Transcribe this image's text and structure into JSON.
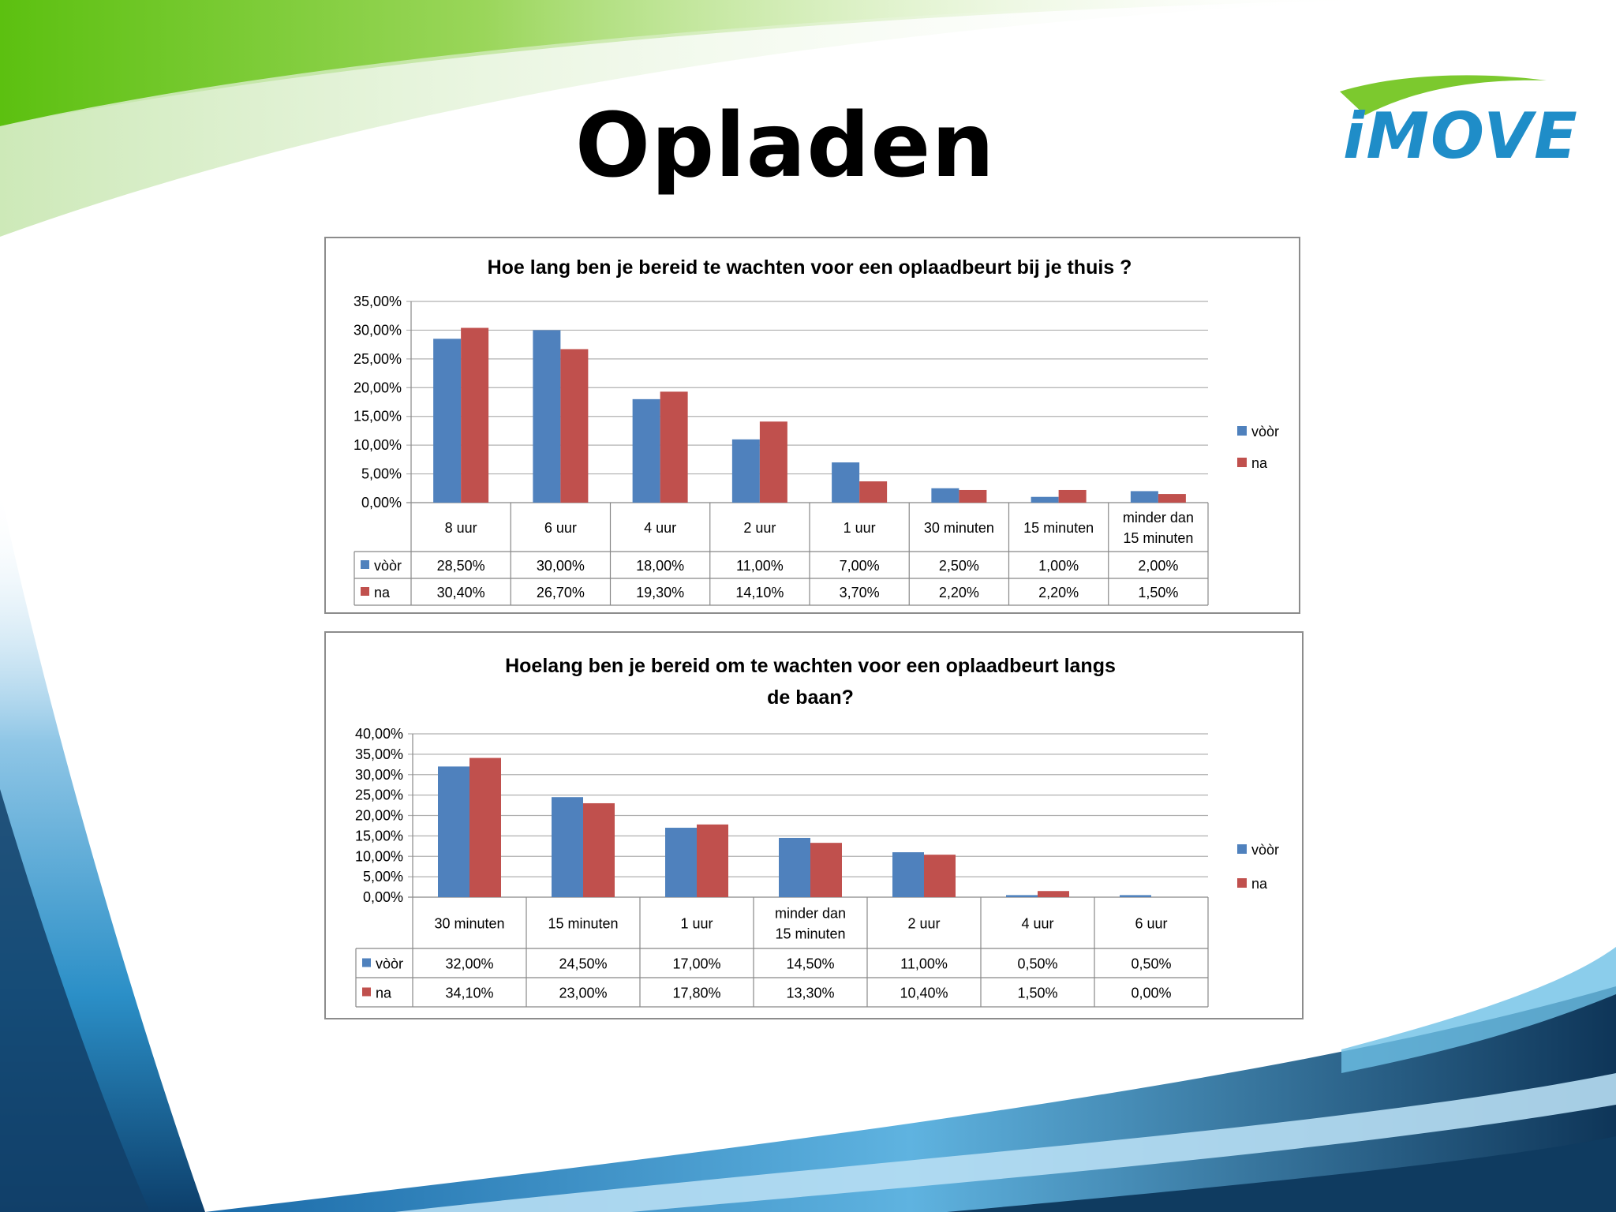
{
  "slide": {
    "title": "Opladen",
    "logo_text": "iMOVE"
  },
  "colors": {
    "voor": "#4f81bd",
    "na": "#c0504d",
    "green": "#66c31a",
    "blue": "#1f8dc8"
  },
  "chart_data": [
    {
      "type": "bar",
      "title": "Hoe lang ben je bereid te wachten voor een oplaadbeurt bij je thuis ?",
      "categories": [
        "8 uur",
        "6 uur",
        "4 uur",
        "2 uur",
        "1 uur",
        "30 minuten",
        "15 minuten",
        "minder dan 15 minuten"
      ],
      "series": [
        {
          "name": "vòòr",
          "values": [
            28.5,
            30.0,
            18.0,
            11.0,
            7.0,
            2.5,
            1.0,
            2.0
          ],
          "labels": [
            "28,50%",
            "30,00%",
            "18,00%",
            "11,00%",
            "7,00%",
            "2,50%",
            "1,00%",
            "2,00%"
          ]
        },
        {
          "name": "na",
          "values": [
            30.4,
            26.7,
            19.3,
            14.1,
            3.7,
            2.2,
            2.2,
            1.5
          ],
          "labels": [
            "30,40%",
            "26,70%",
            "19,30%",
            "14,10%",
            "3,70%",
            "2,20%",
            "2,20%",
            "1,50%"
          ]
        }
      ],
      "ylim": [
        0,
        35
      ],
      "yticks": [
        "0,00%",
        "5,00%",
        "10,00%",
        "15,00%",
        "20,00%",
        "25,00%",
        "30,00%",
        "35,00%"
      ],
      "legend": "right",
      "grid": true,
      "data_table": true
    },
    {
      "type": "bar",
      "title": "Hoelang ben je bereid om te wachten voor een oplaadbeurt langs de baan?",
      "categories": [
        "30 minuten",
        "15 minuten",
        "1 uur",
        "minder dan 15 minuten",
        "2 uur",
        "4 uur",
        "6 uur"
      ],
      "series": [
        {
          "name": "vòòr",
          "values": [
            32.0,
            24.5,
            17.0,
            14.5,
            11.0,
            0.5,
            0.5
          ],
          "labels": [
            "32,00%",
            "24,50%",
            "17,00%",
            "14,50%",
            "11,00%",
            "0,50%",
            "0,50%"
          ]
        },
        {
          "name": "na",
          "values": [
            34.1,
            23.0,
            17.8,
            13.3,
            10.4,
            1.5,
            0.0
          ],
          "labels": [
            "34,10%",
            "23,00%",
            "17,80%",
            "13,30%",
            "10,40%",
            "1,50%",
            "0,00%"
          ]
        }
      ],
      "ylim": [
        0,
        40
      ],
      "yticks": [
        "0,00%",
        "5,00%",
        "10,00%",
        "15,00%",
        "20,00%",
        "25,00%",
        "30,00%",
        "35,00%",
        "40,00%"
      ],
      "legend": "right",
      "grid": true,
      "data_table": true
    }
  ]
}
